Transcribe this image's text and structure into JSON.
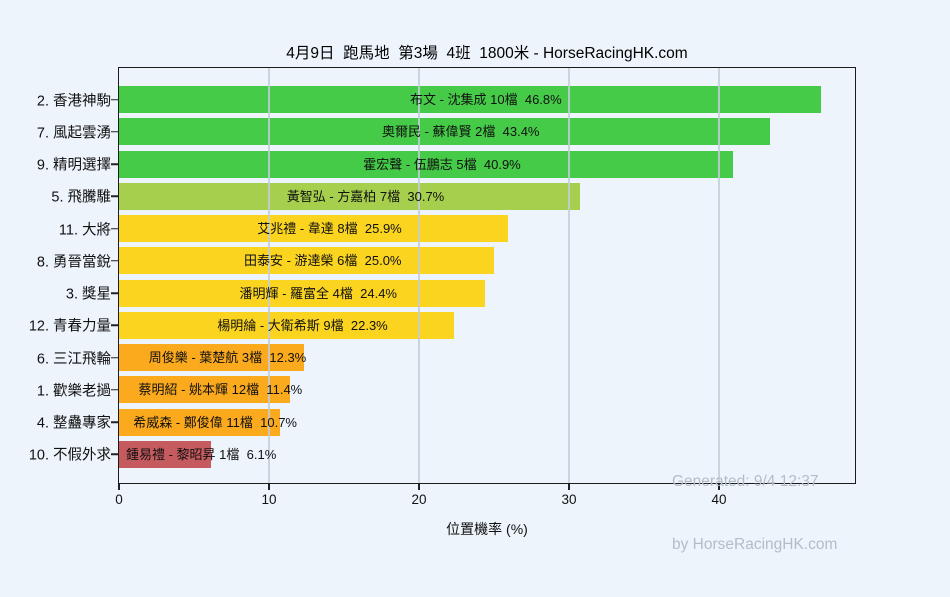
{
  "page": {
    "watermark_line1": "Generated: 9/4 12:37",
    "watermark_line2": "by HorseRacingHK.com"
  },
  "chart_data": {
    "type": "bar",
    "orientation": "horizontal",
    "title": "4月9日  跑馬地  第3場  4班  1800米 - HorseRacingHK.com",
    "xlabel": "位置機率 (%)",
    "ylabel": "",
    "xlim": [
      0,
      49.1
    ],
    "xticks": [
      0,
      10,
      20,
      30,
      40
    ],
    "grid": "vertical",
    "legend": false,
    "rows": [
      {
        "horse": "2. 香港神駒",
        "bar_label": "布文 - 沈集成 10檔  46.8%",
        "value": 46.8,
        "color": "#45cb48"
      },
      {
        "horse": "7. 風起雲湧",
        "bar_label": "奧爾民 - 蘇偉賢 2檔  43.4%",
        "value": 43.4,
        "color": "#45cb48"
      },
      {
        "horse": "9. 精明選擇",
        "bar_label": "霍宏聲 - 伍鵬志 5檔  40.9%",
        "value": 40.9,
        "color": "#45cb48"
      },
      {
        "horse": "5. 飛騰騅",
        "bar_label": "黃智弘 - 方嘉柏 7檔  30.7%",
        "value": 30.7,
        "color": "#a5cf4c"
      },
      {
        "horse": "11. 大將",
        "bar_label": "艾兆禮 - 韋達 8檔  25.9%",
        "value": 25.9,
        "color": "#fbd420"
      },
      {
        "horse": "8. 勇晉當銳",
        "bar_label": "田泰安 - 游達榮 6檔  25.0%",
        "value": 25.0,
        "color": "#fbd420"
      },
      {
        "horse": "3. 獎星",
        "bar_label": "潘明輝 - 羅富全 4檔  24.4%",
        "value": 24.4,
        "color": "#fbd420"
      },
      {
        "horse": "12. 青春力量",
        "bar_label": "楊明綸 - 大衛希斯 9檔  22.3%",
        "value": 22.3,
        "color": "#fbd420"
      },
      {
        "horse": "6. 三江飛輪",
        "bar_label": "周俊樂 - 葉楚航 3檔  12.3%",
        "value": 12.3,
        "color": "#fba91d"
      },
      {
        "horse": "1. 歡樂老撾",
        "bar_label": "蔡明紹 - 姚本輝 12檔  11.4%",
        "value": 11.4,
        "color": "#fba91d"
      },
      {
        "horse": "4. 整蠱專家",
        "bar_label": "希威森 - 鄭俊偉 11檔  10.7%",
        "value": 10.7,
        "color": "#fba91d"
      },
      {
        "horse": "10. 不假外求",
        "bar_label": "鍾易禮 - 黎昭昇 1檔  6.1%",
        "value": 6.1,
        "color": "#c55b5f"
      }
    ],
    "colors": {
      "background": "#edf4fc",
      "axis": "#1b1b1b",
      "grid": "#c3cddb",
      "bar_text": "#111111",
      "watermark": "#b4bcc6"
    }
  }
}
